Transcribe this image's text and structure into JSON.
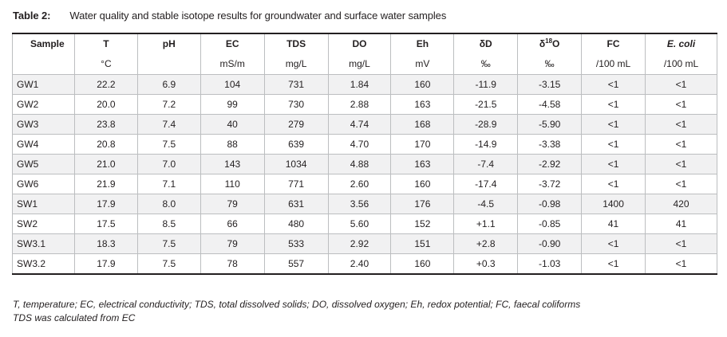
{
  "caption": {
    "label": "Table 2:",
    "text": "Water quality and stable isotope results for groundwater and surface water samples"
  },
  "table": {
    "headers": [
      "Sample",
      "T",
      "pH",
      "EC",
      "TDS",
      "DO",
      "Eh",
      "δD",
      "δ18O",
      "FC",
      "E. coli"
    ],
    "d18o_parts": {
      "prefix": "δ",
      "sup": "18",
      "suffix": "O"
    },
    "units": [
      "",
      "°C",
      "",
      "mS/m",
      "mg/L",
      "mg/L",
      "mV",
      "‰",
      "‰",
      "/100 mL",
      "/100 mL"
    ],
    "rows": [
      [
        "GW1",
        "22.2",
        "6.9",
        "104",
        "731",
        "1.84",
        "160",
        "-11.9",
        "-3.15",
        "<1",
        "<1"
      ],
      [
        "GW2",
        "20.0",
        "7.2",
        "99",
        "730",
        "2.88",
        "163",
        "-21.5",
        "-4.58",
        "<1",
        "<1"
      ],
      [
        "GW3",
        "23.8",
        "7.4",
        "40",
        "279",
        "4.74",
        "168",
        "-28.9",
        "-5.90",
        "<1",
        "<1"
      ],
      [
        "GW4",
        "20.8",
        "7.5",
        "88",
        "639",
        "4.70",
        "170",
        "-14.9",
        "-3.38",
        "<1",
        "<1"
      ],
      [
        "GW5",
        "21.0",
        "7.0",
        "143",
        "1034",
        "4.88",
        "163",
        "-7.4",
        "-2.92",
        "<1",
        "<1"
      ],
      [
        "GW6",
        "21.9",
        "7.1",
        "110",
        "771",
        "2.60",
        "160",
        "-17.4",
        "-3.72",
        "<1",
        "<1"
      ],
      [
        "SW1",
        "17.9",
        "8.0",
        "79",
        "631",
        "3.56",
        "176",
        "-4.5",
        "-0.98",
        "1400",
        "420"
      ],
      [
        "SW2",
        "17.5",
        "8.5",
        "66",
        "480",
        "5.60",
        "152",
        "+1.1",
        "-0.85",
        "41",
        "41"
      ],
      [
        "SW3.1",
        "18.3",
        "7.5",
        "79",
        "533",
        "2.92",
        "151",
        "+2.8",
        "-0.90",
        "<1",
        "<1"
      ],
      [
        "SW3.2",
        "17.9",
        "7.5",
        "78",
        "557",
        "2.40",
        "160",
        "+0.3",
        "-1.03",
        "<1",
        "<1"
      ]
    ]
  },
  "notes": [
    "T, temperature; EC, electrical conductivity; TDS, total dissolved solids; DO, dissolved oxygen; Eh, redox potential; FC, faecal coliforms",
    "TDS was calculated from EC"
  ]
}
